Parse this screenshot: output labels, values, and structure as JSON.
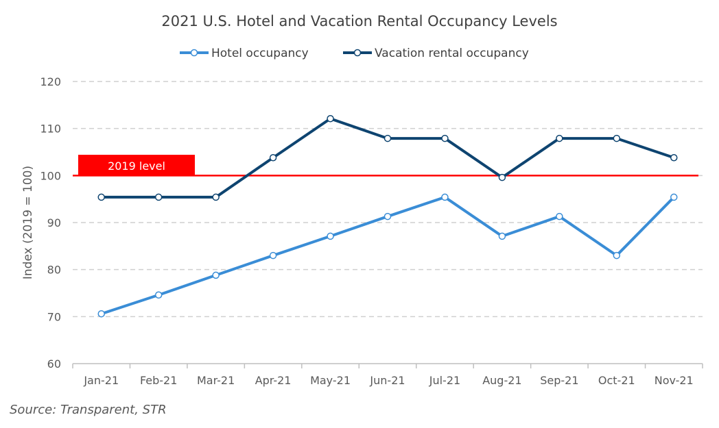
{
  "chart_data": {
    "type": "line",
    "title": "2021 U.S. Hotel and Vacation Rental Occupancy Levels",
    "ylabel": "Index (2019 = 100)",
    "ylim": [
      60,
      120
    ],
    "yticks": [
      60,
      70,
      80,
      90,
      100,
      110,
      120
    ],
    "grid": true,
    "legend_position": "top-center",
    "categories": [
      "Jan-21",
      "Feb-21",
      "Mar-21",
      "Apr-21",
      "May-21",
      "Jun-21",
      "Jul-21",
      "Aug-21",
      "Sep-21",
      "Oct-21",
      "Nov-21"
    ],
    "series": [
      {
        "name": "Hotel occupancy",
        "color": "#3A8DD6",
        "values": [
          70.6,
          74.6,
          78.8,
          83.0,
          87.1,
          91.3,
          95.4,
          87.1,
          91.3,
          83.0,
          95.4
        ]
      },
      {
        "name": "Vacation rental occupancy",
        "color": "#0E4470",
        "values": [
          95.4,
          95.4,
          95.4,
          103.8,
          112.1,
          107.9,
          107.9,
          99.6,
          107.9,
          107.9,
          103.8
        ]
      }
    ],
    "reference_line": {
      "value": 100,
      "label": "2019 level",
      "color": "#FF0000"
    }
  },
  "source": "Source: Transparent, STR"
}
